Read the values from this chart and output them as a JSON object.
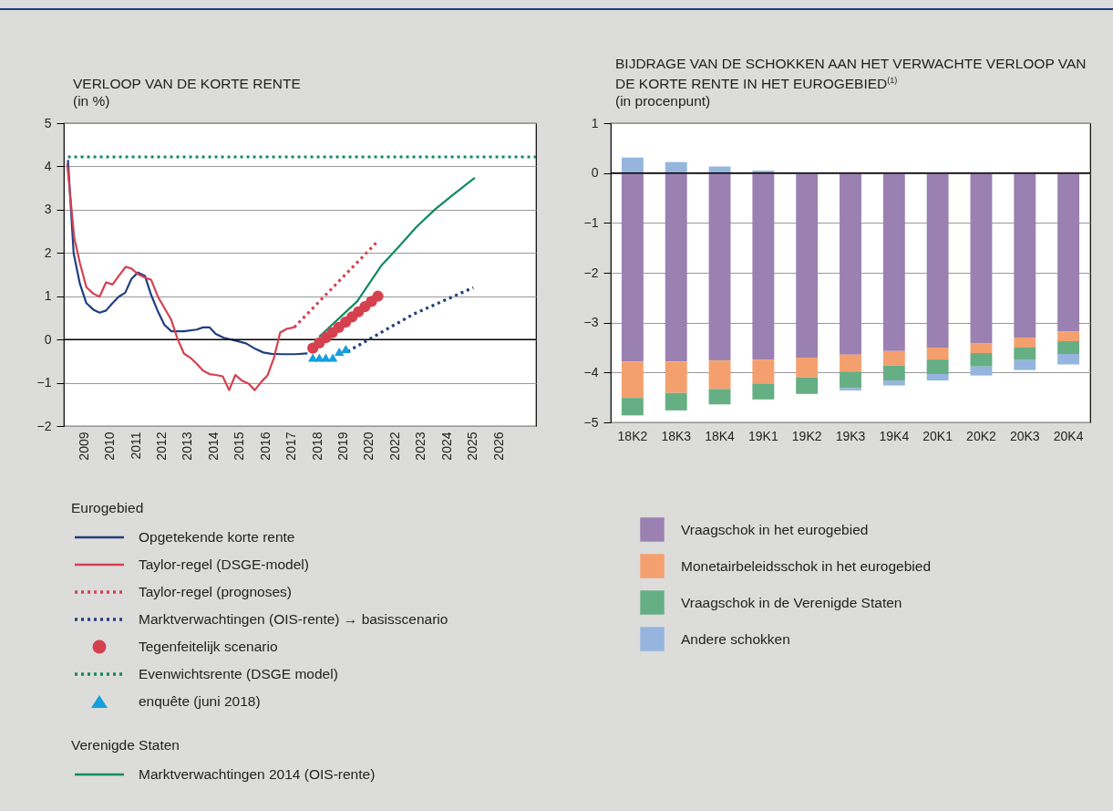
{
  "chart_data": [
    {
      "type": "line",
      "title": "VERLOOP VAN DE KORTE RENTE",
      "subtitle": "(in %)",
      "legend_title": "Eurogebied",
      "annotations": [
        "Verenigde Staten"
      ],
      "legend": "bottom left",
      "grid": "y",
      "xlim": [
        2008.72,
        2026.94
      ],
      "xticks": [
        {
          "value": 2009.5,
          "label": "2009"
        },
        {
          "value": 2010.5,
          "label": "2010"
        },
        {
          "value": 2011.5,
          "label": "2011"
        },
        {
          "value": 2012.5,
          "label": "2012"
        },
        {
          "value": 2013.5,
          "label": "2013"
        },
        {
          "value": 2014.5,
          "label": "2014"
        },
        {
          "value": 2015.5,
          "label": "2015"
        },
        {
          "value": 2016.5,
          "label": "2016"
        },
        {
          "value": 2017.5,
          "label": "2017"
        },
        {
          "value": 2018.5,
          "label": "2018"
        },
        {
          "value": 2019.5,
          "label": "2019"
        },
        {
          "value": 2020.5,
          "label": "2020"
        },
        {
          "value": 2021.5,
          "label": "2022"
        },
        {
          "value": 2022.5,
          "label": "2023"
        },
        {
          "value": 2023.5,
          "label": "2024"
        },
        {
          "value": 2024.5,
          "label": "2025"
        },
        {
          "value": 2025.5,
          "label": "2026"
        }
      ],
      "ylim": [
        -2,
        5
      ],
      "yticks": [
        -2,
        -1,
        0,
        1,
        2,
        3,
        4,
        5
      ],
      "ref_lines": [
        {
          "axis": "y",
          "value": 0,
          "color": "#000000"
        }
      ],
      "series": [
        {
          "name": "Opgetekende korte rente",
          "type": "line",
          "color": "#1f3f7f",
          "line_style": "solid",
          "x": [
            2008.88,
            2009.1,
            2009.34,
            2009.59,
            2009.86,
            2010.1,
            2010.35,
            2010.6,
            2010.84,
            2011.09,
            2011.33,
            2011.58,
            2011.85,
            2012.09,
            2012.35,
            2012.6,
            2012.87,
            2013.36,
            2013.85,
            2014.09,
            2014.34,
            2014.58,
            2014.89,
            2015.38,
            2015.75,
            2016.12,
            2016.42,
            2016.73,
            2017.16,
            2017.65,
            2018.12
          ],
          "values": [
            4.15,
            1.99,
            1.29,
            0.84,
            0.69,
            0.62,
            0.67,
            0.84,
            0.99,
            1.08,
            1.4,
            1.55,
            1.47,
            1.03,
            0.65,
            0.34,
            0.19,
            0.19,
            0.23,
            0.28,
            0.28,
            0.13,
            0.04,
            -0.03,
            -0.09,
            -0.22,
            -0.3,
            -0.33,
            -0.34,
            -0.34,
            -0.32
          ]
        },
        {
          "name": "Taylor-regel (DSGE-model)",
          "type": "line",
          "color": "#d5404f",
          "line_style": "solid",
          "x": [
            2008.85,
            2009.12,
            2009.34,
            2009.59,
            2009.86,
            2010.1,
            2010.35,
            2010.6,
            2010.84,
            2011.11,
            2011.33,
            2011.58,
            2011.85,
            2012.09,
            2012.35,
            2012.6,
            2012.87,
            2013.11,
            2013.36,
            2013.6,
            2013.85,
            2014.09,
            2014.34,
            2014.58,
            2014.85,
            2015.1,
            2015.34,
            2015.59,
            2015.85,
            2016.09,
            2016.34,
            2016.58,
            2016.83,
            2017.07,
            2017.34,
            2017.61
          ],
          "values": [
            4.07,
            2.36,
            1.77,
            1.21,
            1.06,
            0.99,
            1.32,
            1.27,
            1.47,
            1.68,
            1.64,
            1.51,
            1.43,
            1.38,
            0.99,
            0.73,
            0.45,
            0.01,
            -0.33,
            -0.42,
            -0.56,
            -0.72,
            -0.8,
            -0.82,
            -0.85,
            -1.17,
            -0.82,
            -0.95,
            -1.02,
            -1.17,
            -0.98,
            -0.83,
            -0.42,
            0.16,
            0.25,
            0.28
          ]
        },
        {
          "name": "Taylor-regel (prognoses)",
          "type": "line",
          "color": "#d5404f",
          "line_style": "dotted",
          "x": [
            2017.61,
            2020.8
          ],
          "values": [
            0.28,
            2.25
          ]
        },
        {
          "name": "Marktverwachtingen (OIS-rente) → basisscenario",
          "type": "line",
          "color": "#1f3f7f",
          "line_style": "dotted",
          "x": [
            2019.67,
            2022.19,
            2024.52
          ],
          "values": [
            -0.28,
            0.58,
            1.2
          ]
        },
        {
          "name": "Tegenfeitelijk scenario",
          "type": "scatter",
          "marker": "circle",
          "color": "#d5404f",
          "x": [
            2018.33,
            2018.58,
            2018.83,
            2019.08,
            2019.33,
            2019.59,
            2019.84,
            2020.09,
            2020.34,
            2020.59,
            2020.84
          ],
          "values": [
            -0.2,
            -0.08,
            0.04,
            0.16,
            0.28,
            0.4,
            0.52,
            0.64,
            0.76,
            0.88,
            1.0
          ]
        },
        {
          "name": "Evenwichtsrente (DSGE model)",
          "type": "line",
          "color": "#0f8a5f",
          "line_style": "dotted",
          "x": [
            2008.88,
            2026.94
          ],
          "values": [
            4.22,
            4.22
          ]
        },
        {
          "name": "enquête (juni 2018)",
          "type": "scatter",
          "marker": "triangle",
          "color": "#139fdb",
          "x": [
            2018.33,
            2018.58,
            2018.83,
            2019.1,
            2019.35,
            2019.6
          ],
          "values": [
            -0.42,
            -0.42,
            -0.42,
            -0.42,
            -0.28,
            -0.22
          ]
        },
        {
          "name": "Marktverwachtingen 2014 (OIS-rente)",
          "type": "line",
          "color": "#0f8a5f",
          "line_style": "solid",
          "x": [
            2018.57,
            2020.04,
            2020.96,
            2021.58,
            2022.31,
            2023.05,
            2023.79,
            2024.58
          ],
          "values": [
            0.06,
            0.88,
            1.7,
            2.1,
            2.59,
            3.01,
            3.37,
            3.74
          ]
        }
      ]
    },
    {
      "type": "bar",
      "stacked": true,
      "title": "BIJDRAGE VAN DE SCHOKKEN AAN HET VERWACHTE VERLOOP VAN DE KORTE RENTE IN HET EUROGEBIED$^{(1)}$",
      "subtitle": "(in procenpunt)",
      "legend": "bottom left",
      "grid": "y",
      "categories": [
        "18K2",
        "18K3",
        "18K4",
        "19K1",
        "19K2",
        "19K3",
        "19K4",
        "20K1",
        "20K2",
        "20K3",
        "20K4"
      ],
      "ylim": [
        -5,
        1
      ],
      "yticks": [
        -5,
        -4,
        -3,
        -2,
        -1,
        0,
        1
      ],
      "ref_lines": [
        {
          "axis": "y",
          "value": 0,
          "color": "#000000"
        }
      ],
      "series": [
        {
          "name": "Vraagschok in het eurogebied",
          "color": "#9b80b2",
          "values": [
            -3.78,
            -3.78,
            -3.76,
            -3.74,
            -3.7,
            -3.64,
            -3.57,
            -3.5,
            -3.41,
            -3.3,
            -3.18
          ]
        },
        {
          "name": "Monetairbeleidsschok in het eurogebied",
          "color": "#f4a06e",
          "values": [
            -0.73,
            -0.63,
            -0.57,
            -0.48,
            -0.4,
            -0.34,
            -0.29,
            -0.24,
            -0.2,
            -0.2,
            -0.19
          ]
        },
        {
          "name": "Vraagschok in de Verenigde Staten",
          "color": "#66ae84",
          "values": [
            -0.35,
            -0.35,
            -0.31,
            -0.32,
            -0.33,
            -0.33,
            -0.3,
            -0.29,
            -0.27,
            -0.25,
            -0.26
          ]
        },
        {
          "name": "Andere schokken",
          "color": "#95b5de",
          "values": [
            0.31,
            0.22,
            0.13,
            0.05,
            0,
            -0.05,
            -0.1,
            -0.13,
            -0.18,
            -0.2,
            -0.21
          ]
        }
      ]
    }
  ]
}
